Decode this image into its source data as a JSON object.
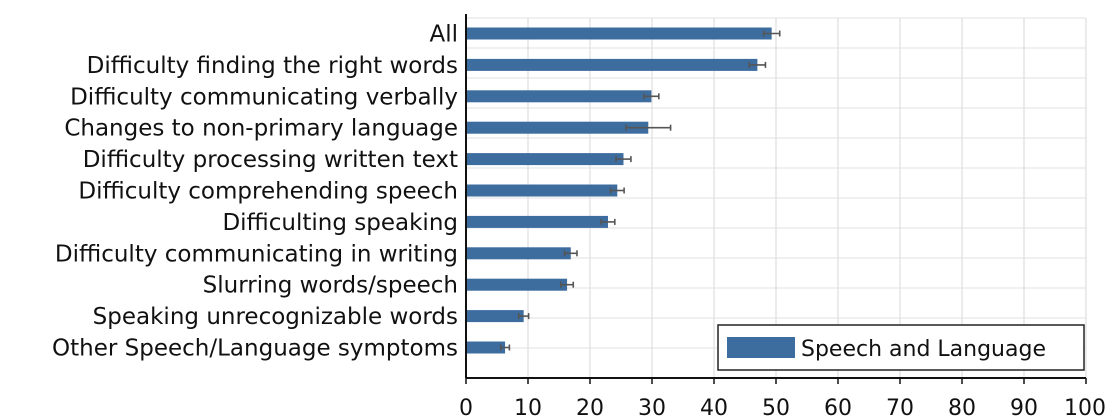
{
  "chart_data": {
    "type": "bar",
    "orientation": "horizontal",
    "categories": [
      "All",
      "Difficulty finding the right words",
      "Difficulty communicating verbally",
      "Changes to non-primary language",
      "Difficulty processing written text",
      "Difficulty comprehending speech",
      "Difficulting speaking",
      "Difficulty communicating in writing",
      "Slurring words/speech",
      "Speaking unrecognizable words",
      "Other Speech/Language symptoms"
    ],
    "series": [
      {
        "name": "Speech and Language",
        "values": [
          49.3,
          47.0,
          29.9,
          29.4,
          25.4,
          24.4,
          22.9,
          16.9,
          16.3,
          9.3,
          6.3
        ],
        "error": [
          1.3,
          1.3,
          1.2,
          3.6,
          1.2,
          1.1,
          1.1,
          1.0,
          1.0,
          0.8,
          0.7
        ],
        "color": "#3d6c9e"
      }
    ],
    "xticks": [
      "0",
      "10",
      "20",
      "30",
      "40",
      "50",
      "60",
      "70",
      "80",
      "90",
      "100"
    ],
    "xlim": [
      0,
      100
    ],
    "grid": true,
    "legend_position": "bottom-right",
    "title": "",
    "xlabel": "",
    "ylabel": ""
  }
}
